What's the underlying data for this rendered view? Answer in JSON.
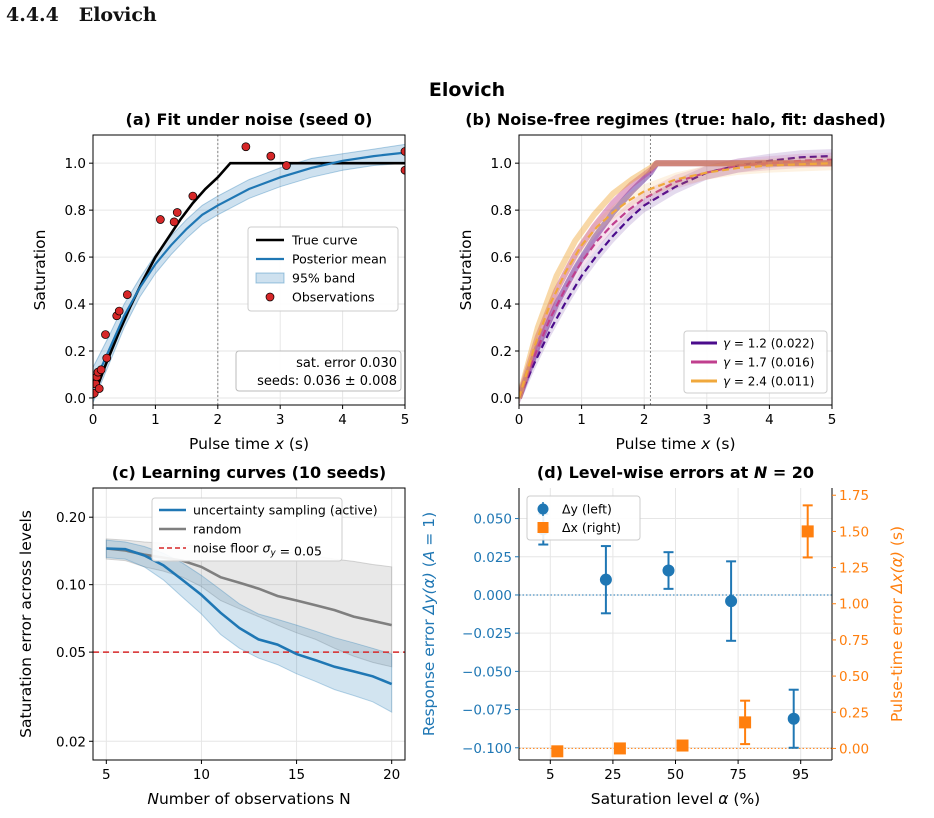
{
  "section_heading": "4.4.4   Elovich",
  "figure_title": "Elovich",
  "colors": {
    "active": "#1f77b4",
    "random": "#7f7f7f",
    "noise": "#d62728",
    "truth": "#000000",
    "obs": "#d62728",
    "dx": "#ff7f0e",
    "g1": "#4b0c8c",
    "g2": "#c03f8e",
    "g3": "#f0a83c"
  },
  "chart_data": [
    {
      "id": "a",
      "type": "line",
      "title": "(a) Fit under noise (seed 0)",
      "xlabel": "Pulse time x (s)",
      "ylabel": "Saturation",
      "xlim": [
        0,
        5
      ],
      "ylim": [
        -0.03,
        1.12
      ],
      "xticks": [
        0,
        1,
        2,
        3,
        4,
        5
      ],
      "yticks": [
        0.0,
        0.2,
        0.4,
        0.6,
        0.8,
        1.0
      ],
      "grid": true,
      "vline_x": 2.0,
      "true_curve": [
        [
          0,
          0
        ],
        [
          0.2,
          0.14
        ],
        [
          0.4,
          0.27
        ],
        [
          0.6,
          0.39
        ],
        [
          0.8,
          0.5
        ],
        [
          1.0,
          0.6
        ],
        [
          1.2,
          0.68
        ],
        [
          1.4,
          0.76
        ],
        [
          1.6,
          0.83
        ],
        [
          1.8,
          0.89
        ],
        [
          2.0,
          0.94
        ],
        [
          2.2,
          1.0
        ],
        [
          3.0,
          1.0
        ],
        [
          4.0,
          1.0
        ],
        [
          5.0,
          1.0
        ]
      ],
      "posterior_mean": [
        [
          0,
          0.05
        ],
        [
          0.25,
          0.2
        ],
        [
          0.5,
          0.35
        ],
        [
          0.75,
          0.47
        ],
        [
          1.0,
          0.57
        ],
        [
          1.25,
          0.65
        ],
        [
          1.5,
          0.72
        ],
        [
          1.75,
          0.78
        ],
        [
          2.0,
          0.82
        ],
        [
          2.5,
          0.89
        ],
        [
          3.0,
          0.94
        ],
        [
          3.5,
          0.98
        ],
        [
          4.0,
          1.01
        ],
        [
          4.5,
          1.03
        ],
        [
          5.0,
          1.045
        ]
      ],
      "band_upper": [
        [
          0,
          0.13
        ],
        [
          0.25,
          0.26
        ],
        [
          0.5,
          0.4
        ],
        [
          0.75,
          0.51
        ],
        [
          1.0,
          0.61
        ],
        [
          1.25,
          0.69
        ],
        [
          1.5,
          0.76
        ],
        [
          1.75,
          0.82
        ],
        [
          2.0,
          0.86
        ],
        [
          2.5,
          0.93
        ],
        [
          3.0,
          0.98
        ],
        [
          3.5,
          1.02
        ],
        [
          4.0,
          1.04
        ],
        [
          4.5,
          1.06
        ],
        [
          5.0,
          1.08
        ]
      ],
      "band_lower": [
        [
          0,
          -0.02
        ],
        [
          0.25,
          0.14
        ],
        [
          0.5,
          0.3
        ],
        [
          0.75,
          0.43
        ],
        [
          1.0,
          0.53
        ],
        [
          1.25,
          0.61
        ],
        [
          1.5,
          0.68
        ],
        [
          1.75,
          0.74
        ],
        [
          2.0,
          0.78
        ],
        [
          2.5,
          0.85
        ],
        [
          3.0,
          0.9
        ],
        [
          3.5,
          0.94
        ],
        [
          4.0,
          0.97
        ],
        [
          4.5,
          0.99
        ],
        [
          5.0,
          1.0
        ]
      ],
      "observations": [
        [
          0.02,
          0.02
        ],
        [
          0.04,
          0.06
        ],
        [
          0.06,
          0.09
        ],
        [
          0.08,
          0.11
        ],
        [
          0.1,
          0.04
        ],
        [
          0.13,
          0.12
        ],
        [
          0.2,
          0.27
        ],
        [
          0.22,
          0.17
        ],
        [
          0.38,
          0.35
        ],
        [
          0.42,
          0.37
        ],
        [
          0.55,
          0.44
        ],
        [
          1.08,
          0.76
        ],
        [
          1.3,
          0.75
        ],
        [
          1.35,
          0.79
        ],
        [
          1.6,
          0.86
        ],
        [
          2.45,
          1.07
        ],
        [
          2.85,
          1.03
        ],
        [
          3.1,
          0.99
        ],
        [
          5.0,
          1.05
        ],
        [
          5.0,
          0.97
        ]
      ],
      "legend": {
        "true": "True curve",
        "mean": "Posterior mean",
        "band": "95% band",
        "obs": "Observations"
      },
      "annotation": [
        "sat. error 0.030",
        "seeds: 0.036 ± 0.008"
      ]
    },
    {
      "id": "b",
      "type": "line",
      "title": "(b) Noise-free regimes (true: halo, fit: dashed)",
      "xlabel": "Pulse time x (s)",
      "ylabel": "Saturation",
      "xlim": [
        0,
        5
      ],
      "ylim": [
        -0.03,
        1.12
      ],
      "xticks": [
        0,
        1,
        2,
        3,
        4,
        5
      ],
      "yticks": [
        0.0,
        0.2,
        0.4,
        0.6,
        0.8,
        1.0
      ],
      "grid": true,
      "vline_x": 2.1,
      "series": [
        {
          "name": "γ = 1.2 (0.022)",
          "color_key": "g1",
          "true": [
            [
              0,
              0
            ],
            [
              0.3,
              0.22
            ],
            [
              0.6,
              0.4
            ],
            [
              0.9,
              0.55
            ],
            [
              1.2,
              0.68
            ],
            [
              1.5,
              0.79
            ],
            [
              1.8,
              0.88
            ],
            [
              2.1,
              0.96
            ],
            [
              2.2,
              1.0
            ],
            [
              5,
              1.0
            ]
          ],
          "fit": [
            [
              0,
              0
            ],
            [
              0.25,
              0.15
            ],
            [
              0.5,
              0.29
            ],
            [
              0.75,
              0.41
            ],
            [
              1.0,
              0.52
            ],
            [
              1.25,
              0.61
            ],
            [
              1.5,
              0.69
            ],
            [
              1.75,
              0.76
            ],
            [
              2.0,
              0.82
            ],
            [
              2.5,
              0.9
            ],
            [
              3.0,
              0.96
            ],
            [
              3.5,
              0.99
            ],
            [
              4.0,
              1.01
            ],
            [
              4.5,
              1.025
            ],
            [
              5.0,
              1.03
            ]
          ]
        },
        {
          "name": "γ = 1.7 (0.016)",
          "color_key": "g2",
          "true": [
            [
              0,
              0
            ],
            [
              0.3,
              0.26
            ],
            [
              0.6,
              0.46
            ],
            [
              0.9,
              0.61
            ],
            [
              1.2,
              0.73
            ],
            [
              1.5,
              0.83
            ],
            [
              1.8,
              0.91
            ],
            [
              2.1,
              0.97
            ],
            [
              2.2,
              1.0
            ],
            [
              5,
              1.0
            ]
          ],
          "fit": [
            [
              0,
              0
            ],
            [
              0.25,
              0.18
            ],
            [
              0.5,
              0.34
            ],
            [
              0.75,
              0.47
            ],
            [
              1.0,
              0.58
            ],
            [
              1.25,
              0.67
            ],
            [
              1.5,
              0.74
            ],
            [
              1.75,
              0.8
            ],
            [
              2.0,
              0.85
            ],
            [
              2.5,
              0.92
            ],
            [
              3.0,
              0.96
            ],
            [
              3.5,
              0.99
            ],
            [
              4.0,
              1.0
            ],
            [
              4.5,
              1.01
            ],
            [
              5.0,
              1.015
            ]
          ]
        },
        {
          "name": "γ = 2.4 (0.011)",
          "color_key": "g3",
          "true": [
            [
              0,
              0
            ],
            [
              0.3,
              0.3
            ],
            [
              0.6,
              0.52
            ],
            [
              0.9,
              0.67
            ],
            [
              1.2,
              0.78
            ],
            [
              1.5,
              0.87
            ],
            [
              1.8,
              0.93
            ],
            [
              2.1,
              0.98
            ],
            [
              2.2,
              1.0
            ],
            [
              5,
              1.0
            ]
          ],
          "fit": [
            [
              0,
              0
            ],
            [
              0.25,
              0.22
            ],
            [
              0.5,
              0.4
            ],
            [
              0.75,
              0.54
            ],
            [
              1.0,
              0.65
            ],
            [
              1.25,
              0.73
            ],
            [
              1.5,
              0.79
            ],
            [
              1.75,
              0.84
            ],
            [
              2.0,
              0.88
            ],
            [
              2.5,
              0.93
            ],
            [
              3.0,
              0.96
            ],
            [
              3.5,
              0.98
            ],
            [
              4.0,
              0.99
            ],
            [
              4.5,
              0.995
            ],
            [
              5.0,
              1.0
            ]
          ]
        }
      ]
    },
    {
      "id": "c",
      "type": "line",
      "title": "(c) Learning curves (10 seeds)",
      "xlabel": "Number of observations N",
      "ylabel": "Saturation error across levels",
      "xlim": [
        4.3,
        20.7
      ],
      "ylim": [
        0.0165,
        0.27
      ],
      "yscale": "log",
      "xticks": [
        5,
        10,
        15,
        20
      ],
      "yticks": [
        0.02,
        0.05,
        0.1,
        0.2
      ],
      "ytick_labels": [
        "0.02",
        "0.05",
        "0.10",
        "0.20"
      ],
      "grid": true,
      "noise_floor": 0.05,
      "x": [
        5,
        6,
        7,
        8,
        9,
        10,
        11,
        12,
        13,
        14,
        15,
        16,
        17,
        18,
        19,
        20
      ],
      "series": [
        {
          "name": "uncertainty sampling (active)",
          "color_key": "active",
          "values": [
            0.145,
            0.144,
            0.135,
            0.122,
            0.105,
            0.09,
            0.075,
            0.064,
            0.057,
            0.054,
            0.049,
            0.046,
            0.043,
            0.041,
            0.039,
            0.036
          ],
          "upper": [
            0.158,
            0.155,
            0.148,
            0.138,
            0.125,
            0.11,
            0.095,
            0.082,
            0.074,
            0.07,
            0.066,
            0.062,
            0.058,
            0.055,
            0.052,
            0.049
          ],
          "lower": [
            0.132,
            0.13,
            0.12,
            0.105,
            0.088,
            0.074,
            0.06,
            0.052,
            0.047,
            0.044,
            0.04,
            0.037,
            0.034,
            0.032,
            0.03,
            0.027
          ]
        },
        {
          "name": "random",
          "color_key": "random",
          "values": [
            0.145,
            0.142,
            0.136,
            0.132,
            0.128,
            0.12,
            0.108,
            0.102,
            0.096,
            0.089,
            0.085,
            0.081,
            0.077,
            0.072,
            0.069,
            0.066
          ],
          "upper": [
            0.16,
            0.158,
            0.155,
            0.153,
            0.15,
            0.15,
            0.148,
            0.146,
            0.143,
            0.141,
            0.138,
            0.134,
            0.13,
            0.127,
            0.123,
            0.12
          ],
          "lower": [
            0.13,
            0.128,
            0.12,
            0.115,
            0.108,
            0.098,
            0.085,
            0.078,
            0.072,
            0.066,
            0.061,
            0.057,
            0.052,
            0.048,
            0.045,
            0.043
          ]
        }
      ],
      "legend_noise": "noise floor σ_y = 0.05"
    },
    {
      "id": "d",
      "type": "scatter",
      "title": "(d) Level-wise errors at N = 20",
      "xlabel": "Saturation level α (%)",
      "ylabel_left": "Response error Δy(α)  (A = 1)",
      "ylabel_right": "Pulse-time error Δx(α)  (s)",
      "categories": [
        "5",
        "25",
        "50",
        "75",
        "95"
      ],
      "ylim_left": [
        -0.108,
        0.07
      ],
      "yticks_left": [
        -0.1,
        -0.075,
        -0.05,
        -0.025,
        0.0,
        0.025,
        0.05
      ],
      "ytick_labels_left": [
        "−0.100",
        "−0.075",
        "−0.050",
        "−0.025",
        "0.000",
        "0.025",
        "0.050"
      ],
      "ylim_right": [
        -0.08,
        1.8
      ],
      "yticks_right": [
        0,
        0.25,
        0.5,
        0.75,
        1.0,
        1.25,
        1.5,
        1.75
      ],
      "ytick_labels_right": [
        "0.00",
        "0.25",
        "0.50",
        "0.75",
        "1.00",
        "1.25",
        "1.50",
        "1.75"
      ],
      "dy": {
        "name": "Δy (left)",
        "values": [
          0.043,
          0.01,
          0.016,
          -0.004,
          -0.081
        ],
        "err": [
          0.01,
          0.022,
          0.012,
          0.026,
          0.019
        ]
      },
      "dx": {
        "name": "Δx (right)",
        "values": [
          -0.02,
          0.0,
          0.02,
          0.18,
          1.5
        ],
        "err": [
          0.0,
          0.0,
          0.0,
          0.15,
          0.18
        ]
      },
      "hline_left": 0.0,
      "hline_right": 0.0
    }
  ]
}
